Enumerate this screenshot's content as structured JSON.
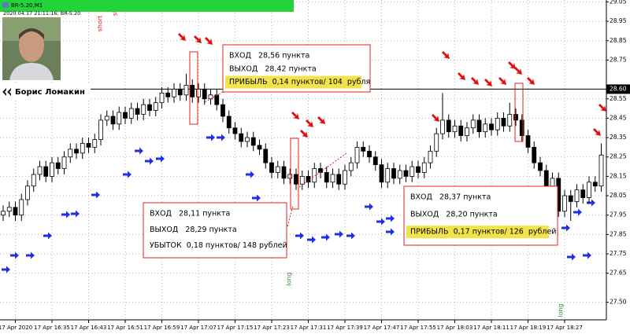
{
  "chart_data": {
    "type": "candlestick",
    "symbol": "BR-5.20,M1",
    "timestamp": "2020.04.17 21:11:16; BR-5.20",
    "author": "Борис Ломакин",
    "categories": [
      null,
      null,
      "17 Apr 2020",
      null,
      null,
      null,
      null,
      null,
      "17 Apr 16:35",
      null,
      null,
      null,
      null,
      null,
      "17 Apr 16:43",
      null,
      null,
      null,
      null,
      null,
      "17 Apr 16:51",
      null,
      null,
      null,
      null,
      null,
      "17 Apr 16:59",
      null,
      null,
      null,
      null,
      null,
      "17 Apr 17:07",
      null,
      null,
      null,
      null,
      null,
      "17 Apr 17:15",
      null,
      null,
      null,
      null,
      null,
      "17 Apr 17:23",
      null,
      null,
      null,
      null,
      null,
      "17 Apr 17:31",
      null,
      null,
      null,
      null,
      null,
      "17 Apr 17:39",
      null,
      null,
      null,
      null,
      null,
      "17 Apr 17:47",
      null,
      null,
      null,
      null,
      null,
      "17 Apr 17:55",
      null,
      null,
      null,
      null,
      null,
      "17 Apr 18:03",
      null,
      null,
      null,
      null,
      null,
      "17 Apr 18:11",
      null,
      null,
      null,
      null,
      null,
      "17 Apr 18:19",
      null,
      null,
      null,
      null,
      null,
      "17 Apr 18:27",
      null,
      null,
      null,
      null,
      null,
      null
    ],
    "open": [
      27.95,
      27.97,
      27.99,
      27.95,
      28.03,
      28.1,
      28.16,
      28.2,
      28.15,
      28.22,
      28.19,
      28.25,
      28.29,
      28.27,
      28.32,
      28.3,
      28.34,
      28.44,
      28.46,
      28.42,
      28.48,
      28.45,
      28.5,
      28.47,
      28.52,
      28.49,
      28.53,
      28.58,
      28.56,
      28.6,
      28.57,
      28.62,
      28.56,
      28.6,
      28.55,
      28.57,
      28.52,
      28.46,
      28.4,
      28.37,
      28.33,
      28.35,
      28.31,
      28.29,
      28.22,
      28.17,
      28.2,
      28.14,
      28.16,
      28.11,
      28.15,
      28.12,
      28.19,
      28.17,
      28.12,
      28.16,
      28.11,
      28.18,
      28.22,
      28.3,
      28.28,
      28.25,
      28.21,
      28.12,
      28.19,
      28.14,
      28.18,
      28.15,
      28.2,
      28.17,
      28.22,
      28.28,
      28.37,
      28.44,
      28.38,
      28.41,
      28.36,
      28.4,
      28.44,
      28.38,
      28.42,
      28.39,
      28.45,
      28.41,
      28.47,
      28.44,
      28.36,
      28.3,
      28.22,
      28.18,
      28.1,
      28.14,
      27.97,
      28.05,
      28.02,
      28.08,
      28.04,
      28.12,
      28.1
    ],
    "high": [
      28.0,
      28.02,
      28.02,
      28.06,
      28.13,
      28.19,
      28.23,
      28.23,
      28.25,
      28.25,
      28.28,
      28.32,
      28.32,
      28.35,
      28.35,
      28.37,
      28.47,
      28.49,
      28.49,
      28.51,
      28.51,
      28.53,
      28.53,
      28.55,
      28.55,
      28.56,
      28.61,
      28.61,
      28.63,
      28.63,
      28.68,
      28.65,
      28.63,
      28.63,
      28.6,
      28.6,
      28.55,
      28.49,
      28.43,
      28.4,
      28.38,
      28.38,
      28.34,
      28.32,
      28.25,
      28.23,
      28.23,
      28.19,
      28.19,
      28.18,
      28.18,
      28.22,
      28.22,
      28.2,
      28.19,
      28.19,
      28.21,
      28.25,
      28.33,
      28.33,
      28.31,
      28.28,
      28.24,
      28.22,
      28.22,
      28.21,
      28.21,
      28.23,
      28.23,
      28.25,
      28.31,
      28.4,
      28.58,
      28.47,
      28.44,
      28.44,
      28.43,
      28.47,
      28.47,
      28.45,
      28.45,
      28.48,
      28.48,
      28.53,
      28.5,
      28.47,
      28.39,
      28.33,
      28.25,
      28.21,
      28.17,
      28.17,
      28.08,
      28.08,
      28.11,
      28.11,
      28.15,
      28.15,
      28.32
    ],
    "low": [
      27.92,
      27.94,
      27.92,
      27.92,
      28.0,
      28.07,
      28.13,
      28.12,
      28.12,
      28.16,
      28.16,
      28.22,
      28.24,
      28.24,
      28.27,
      28.27,
      28.31,
      28.41,
      28.39,
      28.39,
      28.42,
      28.42,
      28.44,
      28.44,
      28.46,
      28.46,
      28.5,
      28.53,
      28.53,
      28.54,
      28.54,
      28.53,
      28.53,
      28.52,
      28.52,
      28.49,
      28.43,
      28.37,
      28.34,
      28.3,
      28.3,
      28.28,
      28.26,
      28.19,
      28.14,
      28.14,
      28.11,
      28.11,
      28.08,
      28.08,
      28.09,
      28.09,
      28.14,
      28.09,
      28.09,
      28.08,
      28.08,
      28.15,
      28.19,
      28.25,
      28.22,
      28.18,
      28.09,
      28.09,
      28.11,
      28.11,
      28.12,
      28.12,
      28.14,
      28.14,
      28.19,
      28.25,
      28.34,
      28.35,
      28.35,
      28.33,
      28.33,
      28.37,
      28.35,
      28.35,
      28.36,
      28.36,
      28.38,
      28.38,
      28.41,
      28.33,
      28.27,
      28.19,
      28.15,
      28.07,
      28.07,
      27.94,
      27.94,
      27.92,
      27.99,
      28.01,
      28.01,
      28.07,
      28.07
    ],
    "close": [
      27.97,
      27.99,
      27.95,
      28.03,
      28.1,
      28.16,
      28.2,
      28.15,
      28.22,
      28.19,
      28.25,
      28.29,
      28.27,
      28.32,
      28.3,
      28.34,
      28.44,
      28.46,
      28.42,
      28.48,
      28.45,
      28.5,
      28.47,
      28.52,
      28.49,
      28.53,
      28.58,
      28.56,
      28.6,
      28.57,
      28.62,
      28.56,
      28.6,
      28.55,
      28.57,
      28.52,
      28.46,
      28.4,
      28.37,
      28.33,
      28.35,
      28.31,
      28.29,
      28.22,
      28.17,
      28.2,
      28.14,
      28.16,
      28.11,
      28.15,
      28.12,
      28.19,
      28.17,
      28.12,
      28.16,
      28.11,
      28.18,
      28.22,
      28.3,
      28.28,
      28.25,
      28.21,
      28.12,
      28.19,
      28.14,
      28.18,
      28.15,
      28.2,
      28.17,
      28.22,
      28.28,
      28.37,
      28.44,
      28.38,
      28.41,
      28.36,
      28.4,
      28.44,
      28.38,
      28.42,
      28.39,
      28.45,
      28.41,
      28.47,
      28.44,
      28.36,
      28.3,
      28.22,
      28.18,
      28.1,
      28.14,
      27.97,
      28.05,
      28.02,
      28.08,
      28.04,
      28.12,
      28.1,
      28.26
    ],
    "up_color": "#ffffff",
    "down_color": "#000000",
    "ylim": [
      27.45,
      29.06
    ],
    "yticks": [
      29.05,
      28.95,
      28.85,
      28.75,
      28.55,
      28.45,
      28.35,
      28.25,
      28.15,
      28.05,
      27.95,
      27.85,
      27.75,
      27.65,
      {
        "value": 27.5,
        "label": "27.50"
      }
    ],
    "grid": true,
    "price_line": {
      "value": 28.6,
      "label": "28.60"
    },
    "signals": [
      "short",
      "short",
      "long",
      "long"
    ],
    "annotations": [
      {
        "lines": [
          "ВХОД   28,56 пункта",
          "ВЫХОД   28,42 пункта",
          "ПРИБЫЛЬ  0,14 пунктов/ 104  рубля"
        ]
      },
      {
        "lines": [
          "ВХОД   28,11 пункта",
          "ВЫХОД   28,29 пункта",
          "УБЫТОК  0,18 пунктов/ 148 рублей"
        ]
      },
      {
        "lines": [
          "ВХОД   28,37 пункта",
          "ВЫХОД   28,20 пункта",
          "ПРИБЫЛЬ  0,17 пунктов/ 126  рублей"
        ]
      }
    ]
  }
}
